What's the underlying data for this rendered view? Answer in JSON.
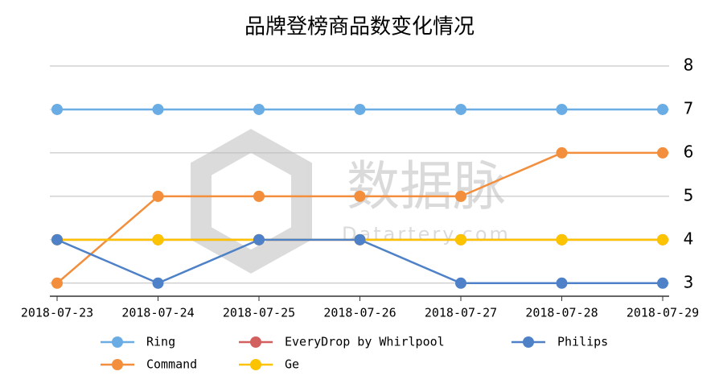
{
  "chart_data": {
    "type": "line",
    "title": "品牌登榜商品数变化情况",
    "x": [
      "2018-07-23",
      "2018-07-24",
      "2018-07-25",
      "2018-07-26",
      "2018-07-27",
      "2018-07-28",
      "2018-07-29"
    ],
    "series": [
      {
        "name": "Ring",
        "color": "#6aade4",
        "values": [
          7,
          7,
          7,
          7,
          7,
          7,
          7
        ]
      },
      {
        "name": "Command",
        "color": "#f28e3c",
        "values": [
          3,
          5,
          5,
          5,
          5,
          6,
          6
        ]
      },
      {
        "name": "EveryDrop by Whirlpool",
        "color": "#d1605e",
        "values": [
          4,
          4,
          4,
          4,
          4,
          4,
          4
        ]
      },
      {
        "name": "Ge",
        "color": "#fcc300",
        "values": [
          4,
          4,
          4,
          4,
          4,
          4,
          4
        ]
      },
      {
        "name": "Philips",
        "color": "#4e81c7",
        "values": [
          4,
          3,
          4,
          4,
          3,
          3,
          3
        ]
      }
    ],
    "ylim": [
      2.7,
      8
    ],
    "yticks": [
      3,
      4,
      5,
      6,
      7,
      8
    ],
    "grid": true,
    "watermark": {
      "name": "数据脉",
      "site": "Datartery.com"
    }
  }
}
